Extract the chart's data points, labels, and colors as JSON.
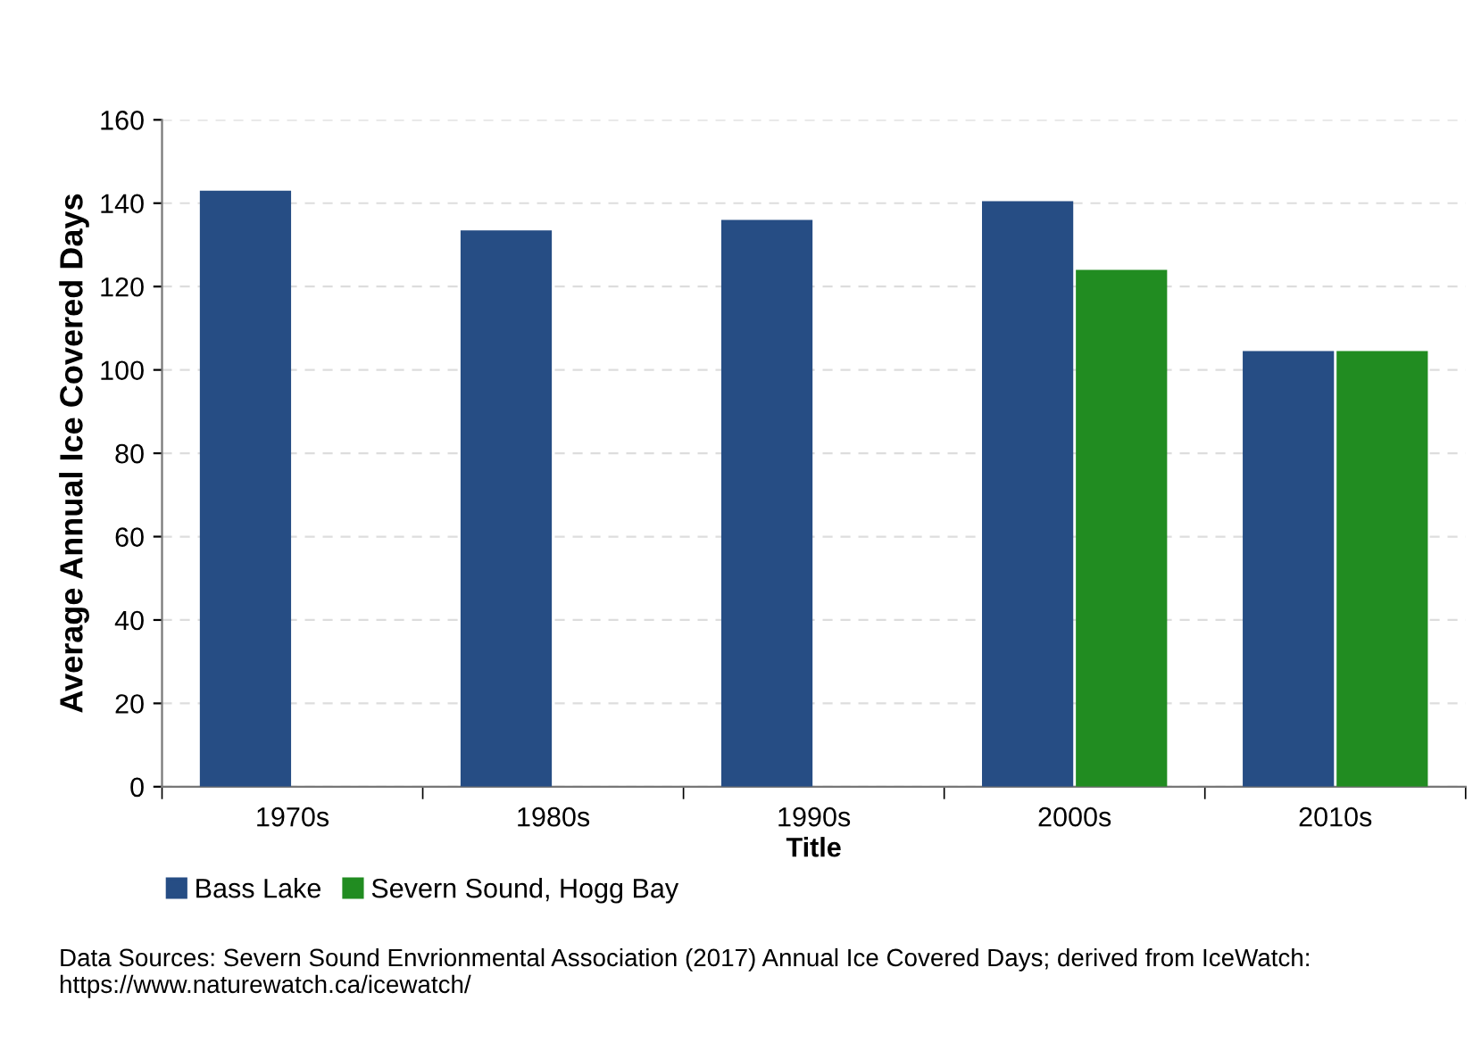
{
  "chart_data": {
    "type": "bar",
    "xlabel": "Title",
    "ylabel": "Average Annual Ice Covered Days",
    "categories": [
      "1970s",
      "1980s",
      "1990s",
      "2000s",
      "2010s"
    ],
    "series": [
      {
        "name": "Bass Lake",
        "color": "#264d84",
        "values": [
          143,
          133.5,
          136,
          140.5,
          104.5
        ]
      },
      {
        "name": "Severn Sound, Hogg Bay",
        "color": "#218c21",
        "values": [
          null,
          null,
          null,
          124,
          104.5
        ]
      }
    ],
    "ylim": [
      0,
      160
    ],
    "yticks": [
      0,
      20,
      40,
      60,
      80,
      100,
      120,
      140,
      160
    ],
    "grid": "y",
    "legend": "bottom left",
    "annotations": [
      "Data Sources: Severn Sound Envrionmental Association (2017) Annual Ice Covered Days; derived from IceWatch: https://www.naturewatch.ca/icewatch/"
    ]
  }
}
